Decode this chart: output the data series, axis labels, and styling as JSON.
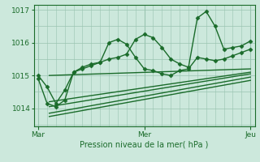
{
  "background_color": "#cce8dc",
  "plot_bg_color": "#cce8dc",
  "grid_color": "#99c4b0",
  "line_color": "#1a6b2a",
  "title": "Pression niveau de la mer( hPa )",
  "ylim": [
    1013.45,
    1017.15
  ],
  "yticks": [
    1014,
    1015,
    1016,
    1017
  ],
  "xtick_labels": [
    "Mar",
    "Mer",
    "Jeu"
  ],
  "xtick_positions": [
    0,
    48,
    96
  ],
  "xlim": [
    -2,
    98
  ],
  "figsize": [
    3.2,
    2.0
  ],
  "dpi": 100,
  "lines_with_markers": [
    {
      "x": [
        0,
        4,
        8,
        12,
        16,
        20,
        24,
        28,
        32,
        36,
        40,
        44,
        48,
        52,
        56,
        60,
        64,
        68,
        72,
        76,
        80,
        84,
        88,
        92,
        96
      ],
      "y": [
        1015.0,
        1014.65,
        1014.15,
        1014.55,
        1015.1,
        1015.25,
        1015.35,
        1015.4,
        1015.5,
        1015.55,
        1015.65,
        1016.1,
        1016.25,
        1016.15,
        1015.85,
        1015.5,
        1015.35,
        1015.25,
        1016.75,
        1016.95,
        1016.5,
        1015.8,
        1015.85,
        1015.9,
        1016.05
      ],
      "marker": "D",
      "markersize": 2.5,
      "linewidth": 1.0
    },
    {
      "x": [
        0,
        4,
        8,
        12,
        16,
        20,
        24,
        28,
        32,
        36,
        40,
        44,
        48,
        52,
        56,
        60,
        64,
        68,
        72,
        76,
        80,
        84,
        88,
        92,
        96
      ],
      "y": [
        1014.9,
        1014.15,
        1014.05,
        1014.25,
        1015.1,
        1015.2,
        1015.3,
        1015.4,
        1016.0,
        1016.1,
        1015.95,
        1015.55,
        1015.2,
        1015.15,
        1015.05,
        1015.0,
        1015.15,
        1015.2,
        1015.55,
        1015.5,
        1015.45,
        1015.5,
        1015.6,
        1015.7,
        1015.8
      ],
      "marker": "D",
      "markersize": 2.5,
      "linewidth": 1.0
    }
  ],
  "fan_lines": [
    {
      "x": [
        5,
        96
      ],
      "y": [
        1015.0,
        1015.2
      ]
    },
    {
      "x": [
        5,
        96
      ],
      "y": [
        1014.2,
        1015.1
      ]
    },
    {
      "x": [
        5,
        96
      ],
      "y": [
        1014.05,
        1015.05
      ]
    },
    {
      "x": [
        5,
        96
      ],
      "y": [
        1013.85,
        1014.95
      ]
    },
    {
      "x": [
        5,
        96
      ],
      "y": [
        1013.75,
        1014.85
      ]
    }
  ],
  "vline_positions": [
    0,
    48,
    96
  ],
  "hgrid_minor": [
    1013.5,
    1014.0,
    1014.5,
    1015.0,
    1015.5,
    1016.0,
    1016.5,
    1017.0
  ],
  "vgrid_minor_step": 4
}
